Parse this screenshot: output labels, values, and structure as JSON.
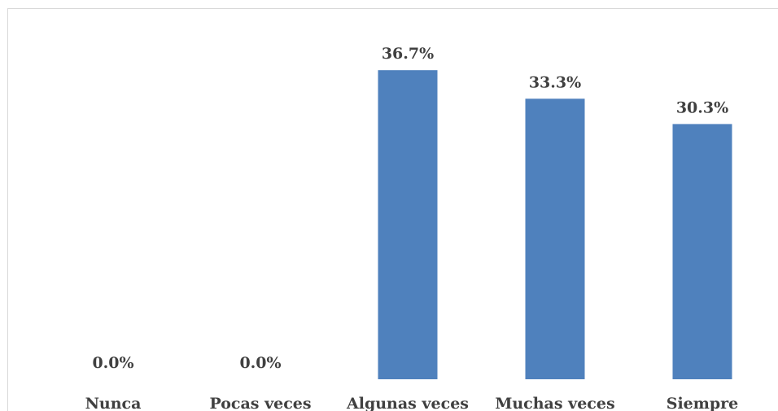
{
  "colors": {
    "bar": "#4f81bd",
    "text": "#404040",
    "frame": "#d9d9d9"
  },
  "chart_data": {
    "type": "bar",
    "title": "",
    "xlabel": "",
    "ylabel": "",
    "categories": [
      "Nunca",
      "Pocas veces",
      "Algunas veces",
      "Muchas veces",
      "Siempre"
    ],
    "values": [
      0.0,
      0.0,
      36.7,
      33.3,
      30.3
    ],
    "data_labels": [
      "0.0%",
      "0.0%",
      "36.7%",
      "33.3%",
      "30.3%"
    ],
    "unit": "%",
    "ylim": [
      0,
      40
    ],
    "grid": false,
    "legend": "none"
  }
}
